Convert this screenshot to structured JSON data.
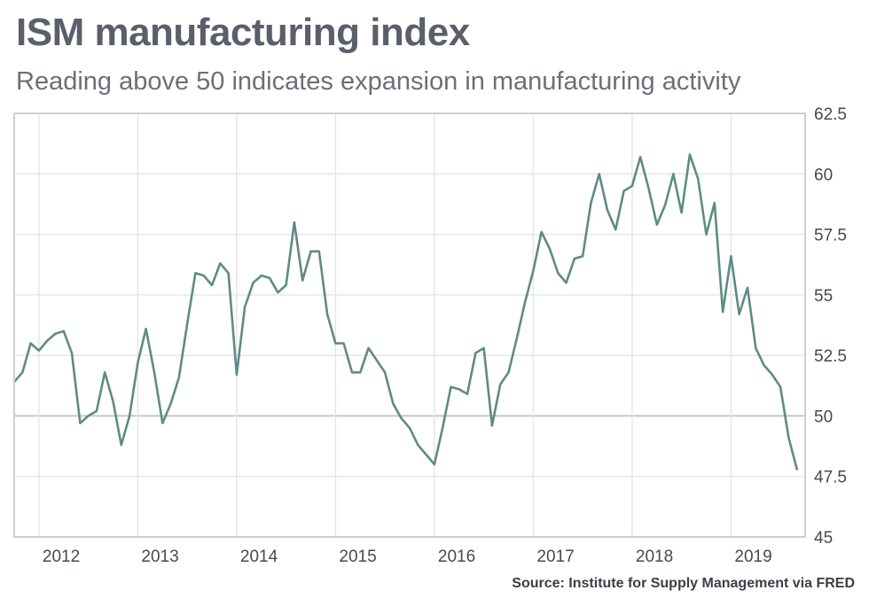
{
  "header": {
    "title": "ISM manufacturing index",
    "subtitle": "Reading above 50 indicates expansion in manufacturing activity"
  },
  "footer": {
    "source": "Source: Institute for Supply Management via FRED"
  },
  "colors": {
    "line": "#5e8c84",
    "grid": "#e6e6e6",
    "baseline": "#c8c8c8",
    "frame": "#cfcfcf"
  },
  "chart_data": {
    "type": "line",
    "title": "ISM manufacturing index",
    "subtitle": "Reading above 50 indicates expansion in manufacturing activity",
    "xlabel": "",
    "ylabel": "",
    "ylim": [
      45,
      62.5
    ],
    "xlim": [
      2011.75,
      2019.75
    ],
    "yticks": [
      45,
      47.5,
      50,
      52.5,
      55,
      57.5,
      60,
      62.5
    ],
    "ytick_labels": [
      "45",
      "47.5",
      "50",
      "52.5",
      "55",
      "57.5",
      "60",
      "62.5"
    ],
    "xticks": [
      2012,
      2013,
      2014,
      2015,
      2016,
      2017,
      2018,
      2019
    ],
    "xtick_labels": [
      "2012",
      "2013",
      "2014",
      "2015",
      "2016",
      "2017",
      "2018",
      "2019"
    ],
    "grid": true,
    "reference_line": 50,
    "series": [
      {
        "name": "ISM manufacturing index",
        "x": [
          2011.75,
          2011.833,
          2011.917,
          2012.0,
          2012.083,
          2012.167,
          2012.25,
          2012.333,
          2012.417,
          2012.5,
          2012.583,
          2012.667,
          2012.75,
          2012.833,
          2012.917,
          2013.0,
          2013.083,
          2013.167,
          2013.25,
          2013.333,
          2013.417,
          2013.5,
          2013.583,
          2013.667,
          2013.75,
          2013.833,
          2013.917,
          2014.0,
          2014.083,
          2014.167,
          2014.25,
          2014.333,
          2014.417,
          2014.5,
          2014.583,
          2014.667,
          2014.75,
          2014.833,
          2014.917,
          2015.0,
          2015.083,
          2015.167,
          2015.25,
          2015.333,
          2015.417,
          2015.5,
          2015.583,
          2015.667,
          2015.75,
          2015.833,
          2015.917,
          2016.0,
          2016.083,
          2016.167,
          2016.25,
          2016.333,
          2016.417,
          2016.5,
          2016.583,
          2016.667,
          2016.75,
          2016.833,
          2016.917,
          2017.0,
          2017.083,
          2017.167,
          2017.25,
          2017.333,
          2017.417,
          2017.5,
          2017.583,
          2017.667,
          2017.75,
          2017.833,
          2017.917,
          2018.0,
          2018.083,
          2018.167,
          2018.25,
          2018.333,
          2018.417,
          2018.5,
          2018.583,
          2018.667,
          2018.75,
          2018.833,
          2018.917,
          2019.0,
          2019.083,
          2019.167,
          2019.25,
          2019.333,
          2019.417,
          2019.5,
          2019.583,
          2019.667
        ],
        "values": [
          51.4,
          51.8,
          53.0,
          52.7,
          53.1,
          53.4,
          53.5,
          52.6,
          49.7,
          50.0,
          50.2,
          51.8,
          50.6,
          48.8,
          50.0,
          52.2,
          53.6,
          51.8,
          49.7,
          50.5,
          51.6,
          53.8,
          55.9,
          55.8,
          55.4,
          56.3,
          55.9,
          51.7,
          54.5,
          55.5,
          55.8,
          55.7,
          55.1,
          55.4,
          58.0,
          55.6,
          56.8,
          56.8,
          54.2,
          53.0,
          53.0,
          51.8,
          51.8,
          52.8,
          52.3,
          51.8,
          50.5,
          49.9,
          49.5,
          48.8,
          48.4,
          48.0,
          49.5,
          51.2,
          51.1,
          50.9,
          52.6,
          52.8,
          49.6,
          51.3,
          51.8,
          53.2,
          54.7,
          56.0,
          57.6,
          56.9,
          55.9,
          55.5,
          56.5,
          56.6,
          58.8,
          60.0,
          58.5,
          57.7,
          59.3,
          59.5,
          60.7,
          59.4,
          57.9,
          58.7,
          60.0,
          58.4,
          60.8,
          59.8,
          57.5,
          58.8,
          54.3,
          56.6,
          54.2,
          55.3,
          52.8,
          52.1,
          51.7,
          51.2,
          49.1,
          47.8
        ]
      }
    ]
  }
}
